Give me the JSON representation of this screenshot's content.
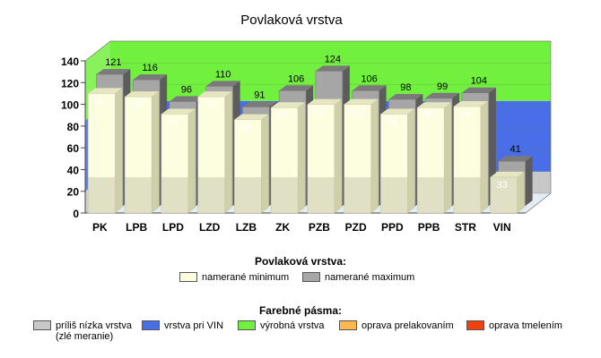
{
  "chart_data": {
    "type": "bar",
    "title": "Povlaková vrstva",
    "categories": [
      "PK",
      "LPB",
      "LPD",
      "LZD",
      "LZB",
      "ZK",
      "PZB",
      "PZD",
      "PPD",
      "PPB",
      "STR",
      "VIN"
    ],
    "series": [
      {
        "name": "namerané minimum",
        "values": [
          110,
          107,
          91,
          107,
          86,
          97,
          100,
          100,
          91,
          97,
          98,
          33
        ],
        "color": "#fdfde0"
      },
      {
        "name": "namerané maximum",
        "values": [
          121,
          116,
          96,
          110,
          91,
          106,
          124,
          106,
          98,
          99,
          104,
          41
        ],
        "color": "#a6a6a6"
      }
    ],
    "ylim": [
      0,
      140
    ],
    "yticks": [
      0,
      20,
      40,
      60,
      80,
      100,
      120,
      140
    ],
    "bands": [
      {
        "from": 0,
        "to": 20,
        "color": "#c8c8c8"
      },
      {
        "from": 20,
        "to": 85,
        "color": "#4a6ee8"
      },
      {
        "from": 85,
        "to": 140,
        "color": "#72f03e"
      }
    ]
  },
  "legend_series": {
    "title": "Povlaková vrstva:",
    "items": [
      {
        "label": "namerané minimum",
        "color": "#fdfde0"
      },
      {
        "label": "namerané maximum",
        "color": "#a6a6a6"
      }
    ]
  },
  "legend_bands": {
    "title": "Farebné pásma:",
    "items": [
      {
        "label": "príliš nízka vrstva",
        "label2": "(zlé meranie)",
        "color": "#c8c8c8"
      },
      {
        "label": "vrstva pri VIN",
        "label2": "",
        "color": "#4a6ee8"
      },
      {
        "label": "výrobná vrstva",
        "label2": "",
        "color": "#72f03e"
      },
      {
        "label": "oprava prelakovaním",
        "label2": "",
        "color": "#ffb84d"
      },
      {
        "label": "oprava tmelením",
        "label2": "",
        "color": "#f04010"
      }
    ]
  }
}
